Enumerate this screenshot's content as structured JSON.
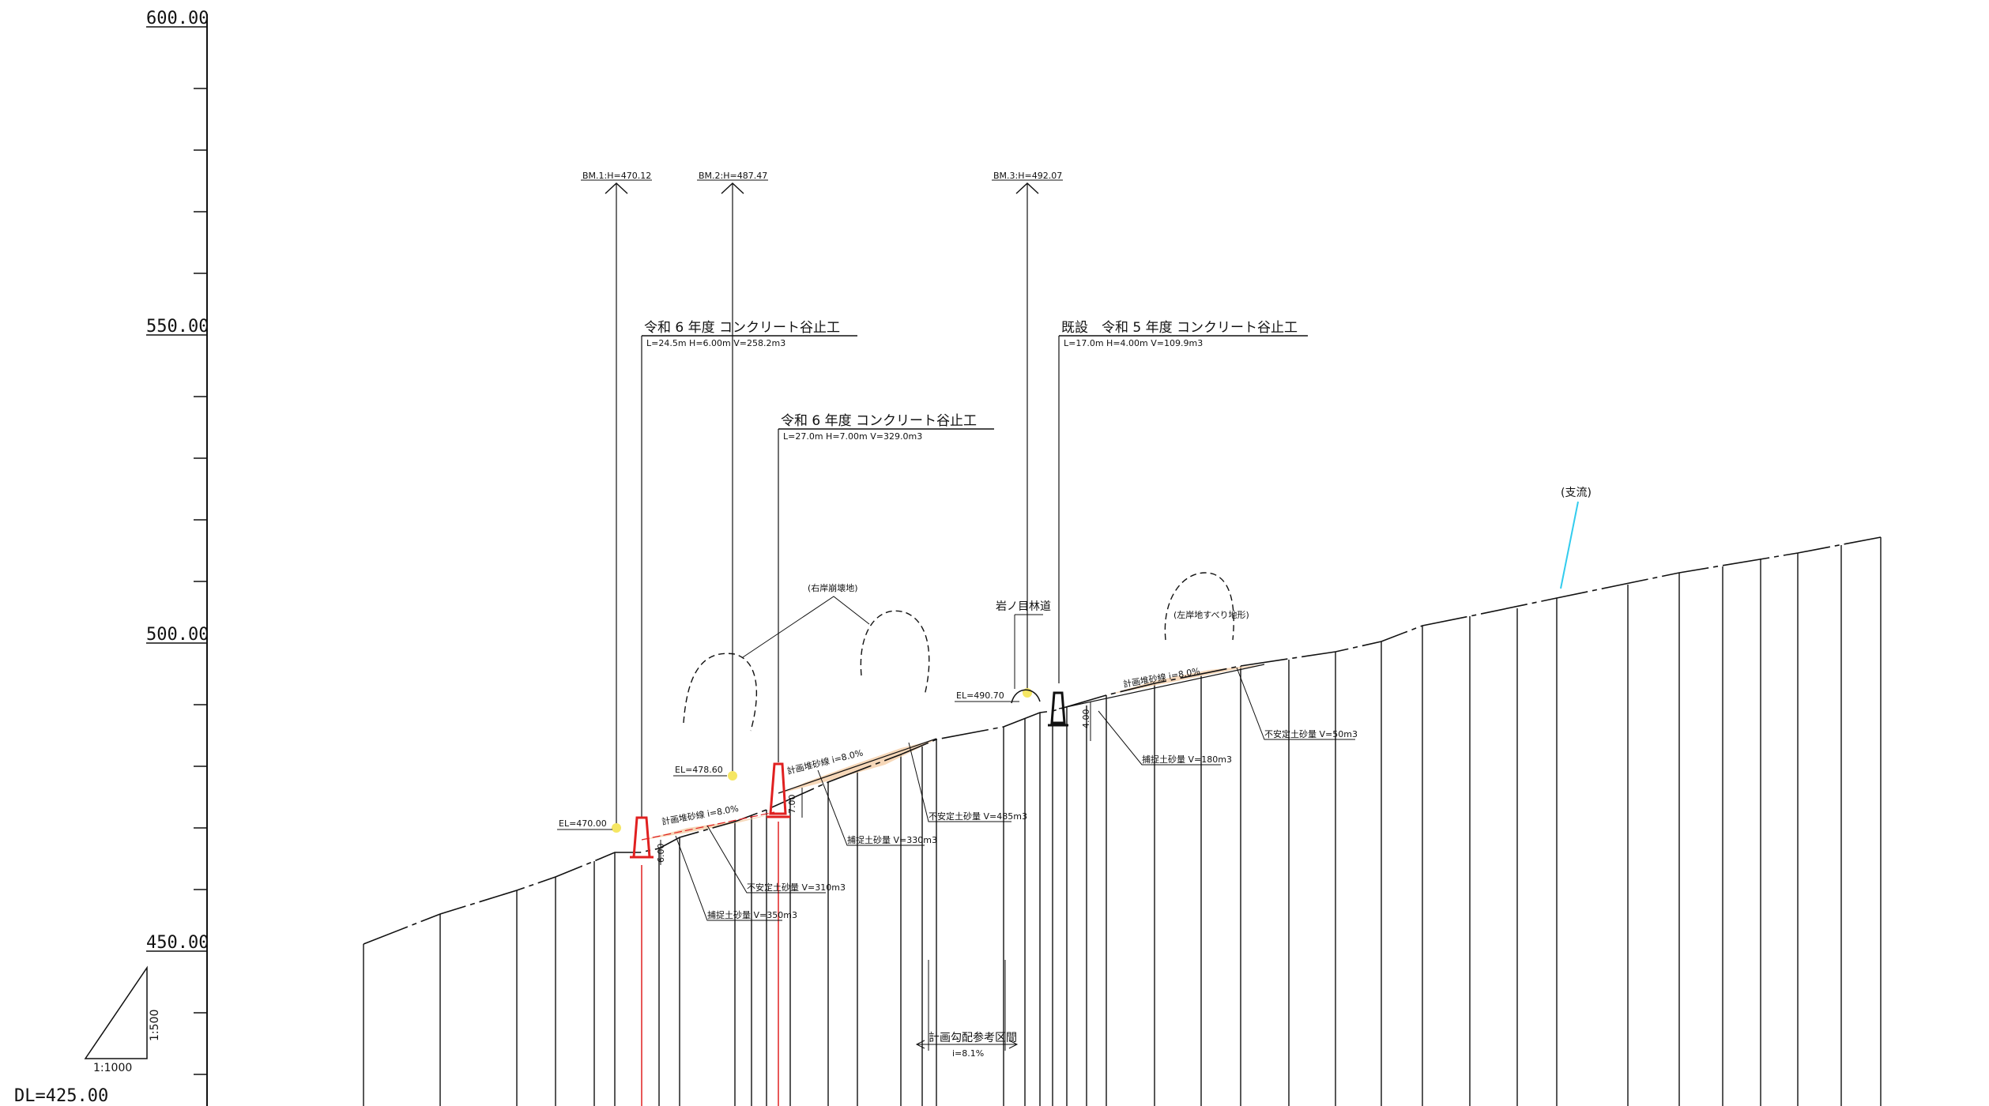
{
  "elevation_axis": {
    "unit": "m",
    "major_ticks": [
      {
        "value": 600,
        "label": "600.00"
      },
      {
        "value": 550,
        "label": "550.00"
      },
      {
        "value": 500,
        "label": "500.00"
      },
      {
        "value": 450,
        "label": "450.00"
      }
    ],
    "datum_label": "DL=425.00"
  },
  "scale": {
    "horizontal": "1:1000",
    "vertical": "1:500"
  },
  "benchmarks": [
    {
      "label": "BM.1:H=470.12",
      "el_label": "EL=470.00",
      "elevation": 470.0
    },
    {
      "label": "BM.2:H=487.47",
      "el_label": "EL=478.60",
      "elevation": 478.6
    },
    {
      "label": "BM.3:H=492.07",
      "el_label": "EL=490.70",
      "elevation": 490.7
    }
  ],
  "structures": [
    {
      "title": "令和 6 年度 コンクリート谷止工",
      "spec": "L=24.5m H=6.00m V=258.2m3",
      "height_label": "6.00",
      "color": "#e02020"
    },
    {
      "title": "令和 6 年度 コンクリート谷止工",
      "spec": "L=27.0m H=7.00m V=329.0m3",
      "height_label": "7.00",
      "color": "#e02020"
    },
    {
      "title": "既設　令和 5 年度 コンクリート谷止工",
      "spec": "L=17.0m H=4.00m V=109.9m3",
      "height_label": "4.00",
      "color": "#111111"
    }
  ],
  "gradient_labels": [
    "計画堆砂線 i=8.0%",
    "計画堆砂線 i=8.0%",
    "計画堆砂線 i=8.0%"
  ],
  "sediment_labels": [
    "不安定土砂量 V=310m3",
    "捕捉土砂量 V=350m3",
    "捕捉土砂量 V=330m3",
    "不安定土砂量 V=485m3",
    "捕捉土砂量 V=180m3",
    "不安定土砂量 V=50m3"
  ],
  "area_labels": {
    "right_bank": "(右岸崩壊地)",
    "left_bank": "(左岸地すべり地形)",
    "road": "岩ノ目林道",
    "tributary": "(支流)"
  },
  "design_section": {
    "label": "計画勾配参考区間",
    "gradient": "i=8.1%"
  },
  "colors": {
    "profile_line": "#111111",
    "new_dam": "#e02020",
    "benchmark_marker": "#f5e663",
    "sediment_fill": "#f3c9a0",
    "tributary": "#33ccee"
  }
}
